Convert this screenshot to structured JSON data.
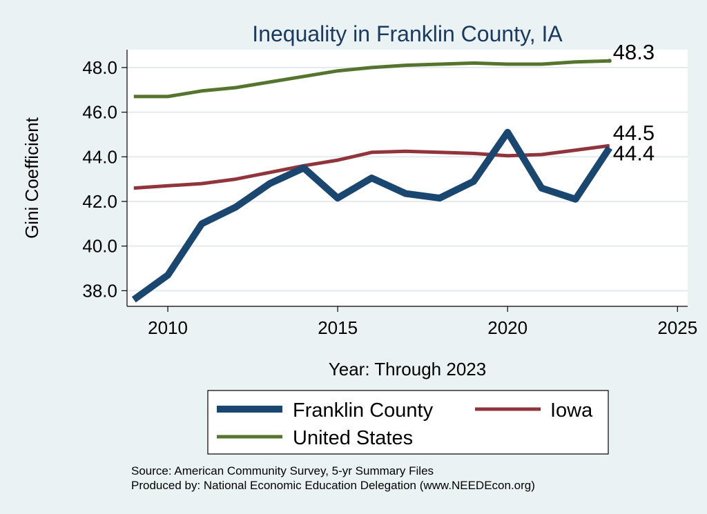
{
  "chart_data": {
    "type": "line",
    "title": "Inequality in Franklin County, IA",
    "xlabel": "Year: Through 2023",
    "ylabel": "Gini Coefficient",
    "xlim": [
      2008.8,
      2025.3
    ],
    "ylim": [
      37.3,
      48.8
    ],
    "x_ticks": [
      2010,
      2015,
      2020,
      2025
    ],
    "x_tick_labels": [
      "2010",
      "2015",
      "2020",
      "2025"
    ],
    "y_ticks": [
      38,
      40,
      42,
      44,
      46,
      48
    ],
    "y_tick_labels": [
      "38.0",
      "40.0",
      "42.0",
      "44.0",
      "46.0",
      "48.0"
    ],
    "grid": true,
    "x": [
      2009,
      2010,
      2011,
      2012,
      2013,
      2014,
      2015,
      2016,
      2017,
      2018,
      2019,
      2020,
      2021,
      2022,
      2023
    ],
    "series": [
      {
        "name": "Franklin County",
        "color": "#1a476f",
        "values": [
          37.6,
          38.7,
          41.0,
          41.75,
          42.8,
          43.5,
          42.15,
          43.05,
          42.35,
          42.15,
          42.9,
          45.1,
          42.6,
          42.1,
          44.4
        ],
        "end_label": "44.4"
      },
      {
        "name": "Iowa",
        "color": "#90353b",
        "values": [
          42.6,
          42.7,
          42.8,
          43.0,
          43.3,
          43.6,
          43.85,
          44.2,
          44.25,
          44.2,
          44.15,
          44.05,
          44.1,
          44.3,
          44.5
        ],
        "end_label": "44.5"
      },
      {
        "name": "United States",
        "color": "#55752f",
        "values": [
          46.7,
          46.7,
          46.95,
          47.1,
          47.35,
          47.6,
          47.85,
          48.0,
          48.1,
          48.15,
          48.2,
          48.15,
          48.15,
          48.25,
          48.3
        ],
        "end_label": "48.3"
      }
    ],
    "legend": {
      "placement": "bottom",
      "entries": [
        "Franklin County",
        "Iowa",
        "United States"
      ]
    },
    "notes": [
      "Source: American Community Survey, 5-yr Summary Files",
      "Produced by: National Economic Education Delegation (www.NEEDEcon.org)"
    ]
  },
  "colors": {
    "background": "#eaf2f3",
    "plot_background": "#ffffff",
    "title": "#1a3a60",
    "grid": "#e4eaee"
  }
}
